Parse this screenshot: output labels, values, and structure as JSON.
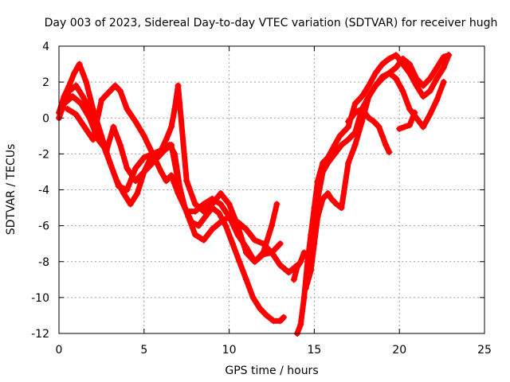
{
  "chart_data": {
    "type": "line",
    "title": "Day 003 of 2023, Sidereal Day-to-day VTEC variation (SDTVAR) for receiver hugh",
    "xlabel": "GPS time / hours",
    "ylabel": "SDTVAR / TECUs",
    "xlim": [
      0,
      25
    ],
    "ylim": [
      -12,
      4
    ],
    "xticks": [
      "0",
      "5",
      "10",
      "15",
      "20",
      "25"
    ],
    "yticks": [
      "4",
      "2",
      "0",
      "-2",
      "-4",
      "-6",
      "-8",
      "-10",
      "-12"
    ],
    "grid": true,
    "marker": "plus",
    "colors": {
      "series": "#ff0000",
      "grid": "#a0a0a0",
      "frame": "#000000"
    },
    "series": [
      {
        "x": [
          0,
          0.3,
          0.6,
          1.0,
          1.4,
          1.8,
          2.2,
          2.6,
          3.0,
          3.4,
          3.8,
          4.2,
          4.6,
          5.0,
          5.4,
          5.8,
          6.2,
          6.6,
          7.0,
          7.4,
          7.8,
          8.2,
          8.6,
          9.0,
          9.4,
          9.8,
          10.2,
          10.6,
          11.0,
          11.4,
          11.8,
          12.2,
          12.6,
          13.0,
          13.2
        ],
        "y": [
          0,
          0.8,
          1.5,
          1.8,
          1.2,
          0.5,
          -0.5,
          -1.5,
          -2.5,
          -3.5,
          -4.2,
          -4.8,
          -4.2,
          -3.0,
          -2.2,
          -2.0,
          -1.8,
          -1.5,
          -3.5,
          -5.0,
          -5.8,
          -6.0,
          -5.5,
          -5.0,
          -5.3,
          -6.0,
          -7.0,
          -8.0,
          -9.0,
          -10.0,
          -10.6,
          -11.0,
          -11.3,
          -11.3,
          -11.1
        ]
      },
      {
        "x": [
          0,
          0.3,
          0.6,
          0.9,
          1.2,
          1.6,
          2.0,
          2.5,
          3.0,
          3.5,
          4.0,
          4.5,
          5.0,
          5.5,
          6.0,
          6.3,
          6.6,
          6.8,
          7.0,
          7.5,
          8.0,
          8.5,
          9.0,
          9.5,
          10.0,
          10.5,
          11.0,
          11.5,
          12.0,
          12.5,
          13.0
        ],
        "y": [
          0.3,
          1.2,
          1.8,
          2.5,
          3.0,
          2.0,
          0.5,
          -1.0,
          -2.5,
          -3.8,
          -4.0,
          -2.8,
          -2.2,
          -2.0,
          -1.8,
          -1.2,
          -0.5,
          0.5,
          1.8,
          -3.5,
          -4.8,
          -5.2,
          -4.8,
          -4.2,
          -4.8,
          -6.0,
          -7.5,
          -8.0,
          -7.6,
          -7.5,
          -7.0
        ]
      },
      {
        "x": [
          0.5,
          1.0,
          1.5,
          2.0,
          2.5,
          3.0,
          3.3,
          3.6,
          4.0,
          4.5,
          5.0,
          5.5,
          6.0,
          6.3,
          6.6,
          7.0,
          7.5,
          8.0,
          8.5,
          9.0,
          9.5,
          10.0,
          10.5,
          11.0,
          11.5,
          12.0,
          12.5,
          12.8
        ],
        "y": [
          0.5,
          0.2,
          -0.5,
          -1.2,
          1.0,
          1.5,
          1.8,
          1.5,
          0.5,
          -0.2,
          -1.0,
          -2.0,
          -3.0,
          -3.5,
          -3.2,
          -4.2,
          -5.2,
          -5.2,
          -4.8,
          -4.5,
          -4.8,
          -5.5,
          -6.5,
          -7.2,
          -8.0,
          -7.5,
          -6.0,
          -4.8
        ]
      },
      {
        "x": [
          0.3,
          0.8,
          1.3,
          1.8,
          2.3,
          2.8,
          3.2,
          3.6,
          4.0,
          4.5,
          5.0,
          5.5,
          6.0,
          6.5,
          6.8,
          7.2,
          7.6,
          8.0,
          8.5,
          9.0,
          9.5,
          10.0,
          10.5,
          11.0,
          11.5,
          12.0,
          12.5,
          13.0,
          13.5,
          14.0
        ],
        "y": [
          0.8,
          1.2,
          0.8,
          0.0,
          -1.2,
          -1.8,
          -0.5,
          -1.5,
          -2.8,
          -3.5,
          -3.0,
          -2.5,
          -2.0,
          -1.5,
          -2.0,
          -4.5,
          -5.5,
          -6.5,
          -6.8,
          -6.2,
          -5.8,
          -5.5,
          -5.8,
          -6.2,
          -6.8,
          -7.0,
          -7.5,
          -8.2,
          -8.6,
          -8.2
        ]
      },
      {
        "x": [
          13.8,
          14.0,
          14.2,
          14.4,
          14.6,
          14.8,
          15.0,
          15.2,
          15.5,
          15.8,
          16.2,
          16.6,
          17.0,
          17.4,
          17.8,
          18.2,
          18.6,
          19.0,
          19.4,
          19.8,
          20.2,
          20.6,
          21.0,
          21.4,
          21.8,
          22.2,
          22.6,
          22.9
        ],
        "y": [
          -9.0,
          -8.3,
          -8.0,
          -7.5,
          -7.8,
          -7.2,
          -6.5,
          -4.5,
          -3.0,
          -2.5,
          -2.0,
          -1.5,
          -1.2,
          -0.8,
          0.5,
          1.2,
          1.8,
          2.3,
          2.5,
          2.8,
          3.3,
          3.0,
          2.2,
          1.8,
          2.2,
          2.8,
          3.4,
          3.5
        ]
      },
      {
        "x": [
          14.0,
          14.2,
          14.4,
          14.6,
          14.8,
          15.0,
          15.2,
          15.5,
          15.8,
          16.2,
          16.5,
          17.0,
          17.4,
          17.8,
          18.2,
          18.6,
          19.0,
          19.4,
          19.8,
          20.2,
          20.6,
          21.0,
          21.4,
          21.8,
          22.2,
          22.6,
          22.9
        ],
        "y": [
          -12.0,
          -11.5,
          -10.0,
          -8.0,
          -6.5,
          -5.0,
          -3.5,
          -2.5,
          -2.2,
          -1.5,
          -1.0,
          -0.5,
          0.8,
          1.2,
          1.8,
          2.5,
          3.0,
          3.3,
          3.5,
          3.0,
          2.5,
          1.8,
          1.2,
          1.5,
          2.2,
          2.8,
          3.5
        ]
      },
      {
        "x": [
          14.5,
          14.8,
          15.0,
          15.2,
          15.5,
          15.8,
          16.0,
          16.3,
          16.6,
          17.0,
          17.4,
          17.8,
          18.2,
          18.6,
          19.0,
          19.4,
          19.8,
          20.2,
          20.6,
          21.0,
          21.4,
          21.8,
          22.2,
          22.6
        ],
        "y": [
          -9.5,
          -8.5,
          -7.0,
          -5.5,
          -4.5,
          -4.2,
          -4.5,
          -4.8,
          -5.0,
          -2.5,
          -1.5,
          -0.2,
          1.2,
          1.8,
          2.2,
          2.5,
          2.2,
          1.5,
          0.5,
          0.0,
          -0.5,
          0.2,
          1.0,
          2.0
        ]
      },
      {
        "x": [
          17.0,
          17.4,
          17.8,
          18.2,
          18.5,
          18.8,
          19.0,
          19.2,
          19.4
        ],
        "y": [
          -0.2,
          0.3,
          0.5,
          0.0,
          -0.2,
          -0.5,
          -1.0,
          -1.5,
          -1.9
        ]
      },
      {
        "x": [
          20.0,
          20.3,
          20.6,
          20.9
        ],
        "y": [
          -0.6,
          -0.5,
          -0.4,
          0.3
        ]
      }
    ]
  }
}
